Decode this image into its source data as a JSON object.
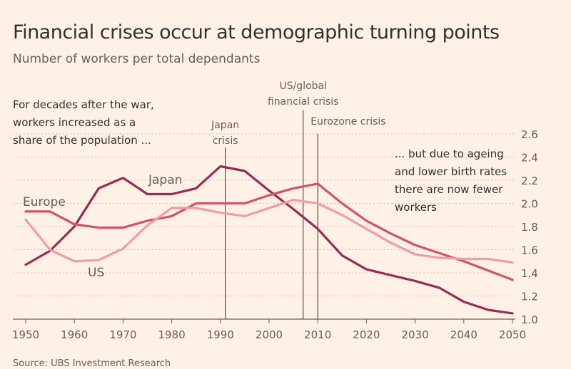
{
  "chart_data": {
    "type": "line",
    "title": "Financial crises occur at demographic turning points",
    "subtitle": "Number of workers per total dependants",
    "x": [
      1950,
      1955,
      1960,
      1965,
      1970,
      1975,
      1980,
      1985,
      1990,
      1995,
      2000,
      2005,
      2010,
      2015,
      2020,
      2025,
      2030,
      2035,
      2040,
      2045,
      2050
    ],
    "xticks": [
      "1950",
      "1960",
      "1970",
      "1980",
      "1990",
      "2000",
      "2010",
      "2020",
      "2030",
      "2040",
      "2050"
    ],
    "yticks": [
      "1.0",
      "1.2",
      "1.4",
      "1.6",
      "1.8",
      "2.0",
      "2.2",
      "2.4",
      "2.6"
    ],
    "ylim": [
      1.0,
      2.6
    ],
    "xlim": [
      1950,
      2050
    ],
    "series": [
      {
        "name": "Japan",
        "color": "#9a2b55",
        "values": [
          1.47,
          1.59,
          1.8,
          2.13,
          2.22,
          2.08,
          2.08,
          2.13,
          2.32,
          2.28,
          2.11,
          1.95,
          1.78,
          1.55,
          1.43,
          1.38,
          1.33,
          1.27,
          1.15,
          1.08,
          1.05
        ]
      },
      {
        "name": "Europe",
        "color": "#d0526d",
        "values": [
          1.93,
          1.93,
          1.82,
          1.79,
          1.79,
          1.85,
          1.89,
          2.0,
          2.0,
          2.0,
          2.07,
          2.13,
          2.17,
          2.0,
          1.85,
          1.74,
          1.64,
          1.57,
          1.5,
          1.42,
          1.34
        ]
      },
      {
        "name": "US",
        "color": "#f29ca4",
        "values": [
          1.86,
          1.6,
          1.5,
          1.51,
          1.61,
          1.81,
          1.96,
          1.96,
          1.92,
          1.89,
          1.96,
          2.03,
          2.0,
          1.9,
          1.78,
          1.66,
          1.56,
          1.53,
          1.52,
          1.52,
          1.49
        ]
      }
    ],
    "events": [
      {
        "year": 1991,
        "label": [
          "Japan",
          "crisis"
        ]
      },
      {
        "year": 2007,
        "label": [
          "US/global",
          "financial crisis"
        ]
      },
      {
        "year": 2010,
        "label": [
          "Eurozone crisis"
        ]
      }
    ],
    "annotations": {
      "left": [
        "For decades after the war,",
        "workers increased as a",
        "share of the population ..."
      ],
      "right": [
        "... but due to ageing",
        "and lower birth rates",
        "there are now fewer",
        "workers"
      ]
    }
  },
  "source": "Source: UBS Investment Research"
}
